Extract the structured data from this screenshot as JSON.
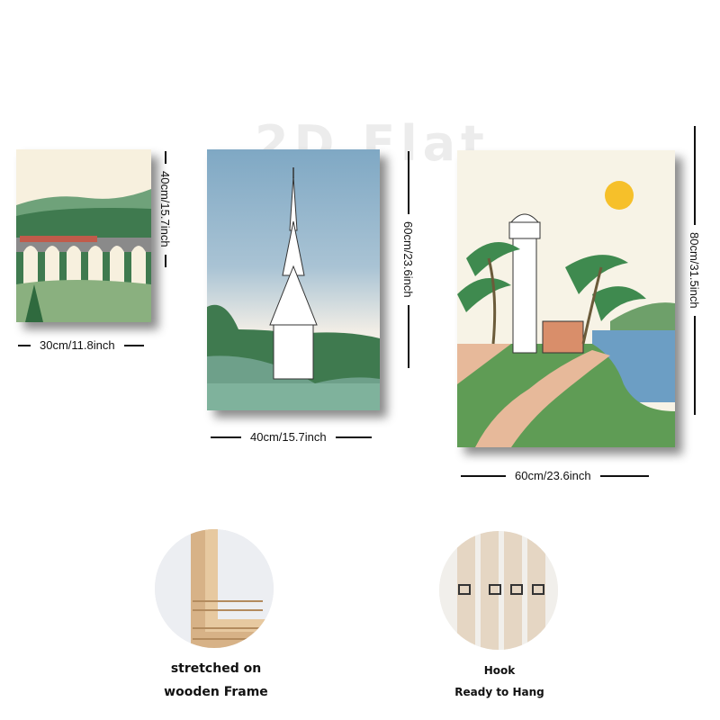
{
  "watermark": "2D Flat",
  "dimensions": {
    "small_height": "40cm/15.7inch",
    "small_width": "30cm/11.8inch",
    "medium_height": "60cm/23.6inch",
    "medium_width": "40cm/15.7inch",
    "large_height": "80cm/31.5inch",
    "large_width": "60cm/23.6inch"
  },
  "features": {
    "frame_line1": "stretched on",
    "frame_line2": "wooden Frame",
    "hook_title": "Hook",
    "hook_sub": "Ready to Hang"
  },
  "colors": {
    "sky_blue": "#7fa8c4",
    "cream": "#f7f3e6",
    "green": "#5f9c6a",
    "dark_green": "#3f7a4f",
    "sun": "#f6c02a",
    "sea": "#6c9ec4",
    "path": "#e7b99a"
  }
}
